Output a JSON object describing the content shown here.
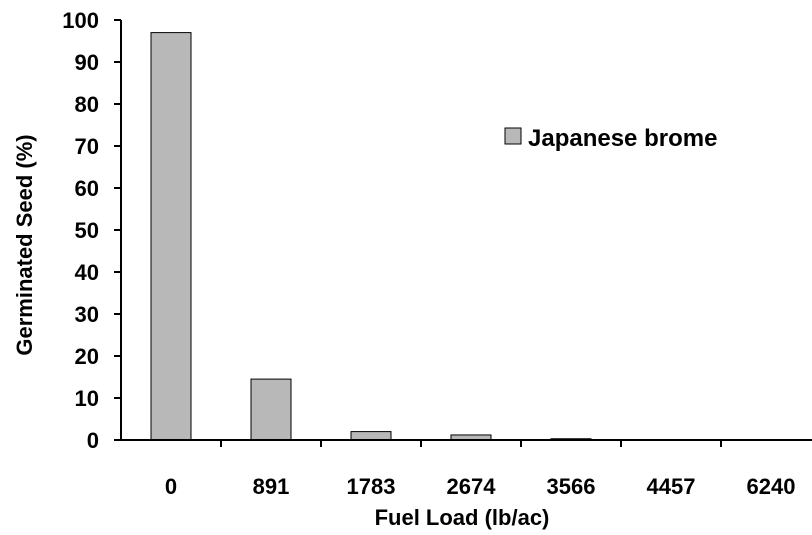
{
  "chart_data": {
    "type": "bar",
    "categories": [
      "0",
      "891",
      "1783",
      "2674",
      "3566",
      "4457",
      "6240"
    ],
    "series": [
      {
        "name": "Japanese brome",
        "values": [
          97,
          14.5,
          2,
          1.2,
          0.3,
          0,
          0
        ],
        "color": "#b8b8b8"
      }
    ],
    "xlabel": "Fuel Load (lb/ac)",
    "ylabel": "Germinated Seed (%)",
    "ylim": [
      0,
      100
    ],
    "yticks": [
      0,
      10,
      20,
      30,
      40,
      50,
      60,
      70,
      80,
      90,
      100
    ],
    "grid": false,
    "legend_position": "top-right"
  }
}
